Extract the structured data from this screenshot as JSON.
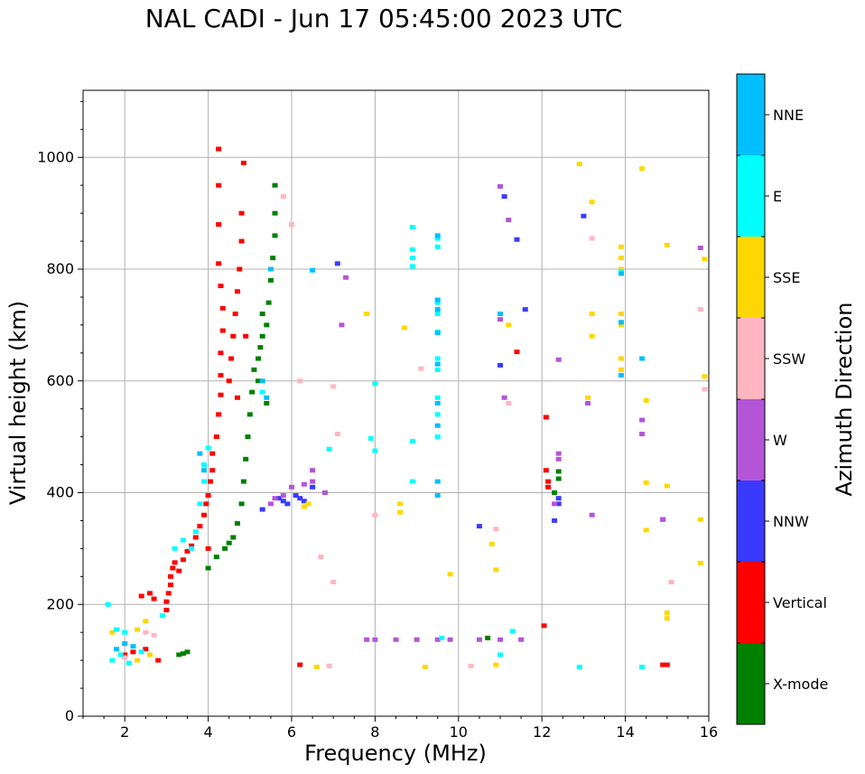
{
  "chart_data": {
    "type": "scatter",
    "title": "NAL CADI - Jun 17 05:45:00 2023 UTC",
    "xlabel": "Frequency (MHz)",
    "ylabel": "Virtual height (km)",
    "xlim": [
      1,
      16
    ],
    "ylim": [
      0,
      1120
    ],
    "xticks": [
      2,
      4,
      6,
      8,
      10,
      12,
      14,
      16
    ],
    "yticks": [
      0,
      200,
      400,
      600,
      800,
      1000
    ],
    "grid": true,
    "colorbar": {
      "label": "Azimuth Direction",
      "entries": [
        {
          "name": "X-mode",
          "color": "#008000"
        },
        {
          "name": "Vertical",
          "color": "#ff0000"
        },
        {
          "name": "NNW",
          "color": "#3a3aff"
        },
        {
          "name": "W",
          "color": "#b455d8"
        },
        {
          "name": "SSW",
          "color": "#ffb6c1"
        },
        {
          "name": "SSE",
          "color": "#ffd700"
        },
        {
          "name": "E",
          "color": "#00ffff"
        },
        {
          "name": "NNE",
          "color": "#00bfff"
        }
      ]
    },
    "series": [
      {
        "name": "Vertical",
        "points": [
          [
            3.0,
            190
          ],
          [
            3.0,
            205
          ],
          [
            3.05,
            220
          ],
          [
            3.1,
            235
          ],
          [
            3.1,
            250
          ],
          [
            3.15,
            265
          ],
          [
            3.2,
            275
          ],
          [
            3.3,
            260
          ],
          [
            3.4,
            280
          ],
          [
            3.5,
            295
          ],
          [
            3.6,
            305
          ],
          [
            3.7,
            320
          ],
          [
            3.8,
            340
          ],
          [
            3.9,
            360
          ],
          [
            3.95,
            380
          ],
          [
            4.0,
            300
          ],
          [
            4.0,
            395
          ],
          [
            4.05,
            420
          ],
          [
            4.1,
            440
          ],
          [
            4.1,
            470
          ],
          [
            4.2,
            500
          ],
          [
            4.25,
            540
          ],
          [
            4.3,
            575
          ],
          [
            4.3,
            610
          ],
          [
            4.3,
            650
          ],
          [
            4.35,
            690
          ],
          [
            4.35,
            730
          ],
          [
            4.3,
            770
          ],
          [
            4.25,
            810
          ],
          [
            4.25,
            880
          ],
          [
            4.25,
            950
          ],
          [
            4.25,
            1015
          ],
          [
            4.5,
            600
          ],
          [
            4.55,
            640
          ],
          [
            4.6,
            680
          ],
          [
            4.65,
            720
          ],
          [
            4.7,
            570
          ],
          [
            4.7,
            760
          ],
          [
            4.75,
            800
          ],
          [
            4.8,
            850
          ],
          [
            4.8,
            900
          ],
          [
            4.85,
            990
          ],
          [
            4.9,
            680
          ],
          [
            2.4,
            215
          ],
          [
            2.6,
            220
          ],
          [
            2.7,
            210
          ],
          [
            2.0,
            110
          ],
          [
            2.2,
            115
          ],
          [
            2.5,
            120
          ],
          [
            2.8,
            100
          ],
          [
            6.2,
            92
          ],
          [
            12.15,
            420
          ],
          [
            12.15,
            410
          ],
          [
            12.1,
            440
          ],
          [
            12.1,
            535
          ],
          [
            15.0,
            92
          ],
          [
            14.9,
            92
          ],
          [
            11.4,
            652
          ],
          [
            12.05,
            162
          ]
        ]
      },
      {
        "name": "X-mode",
        "points": [
          [
            3.3,
            110
          ],
          [
            3.4,
            112
          ],
          [
            3.5,
            115
          ],
          [
            4.0,
            265
          ],
          [
            4.2,
            285
          ],
          [
            4.4,
            300
          ],
          [
            4.5,
            310
          ],
          [
            4.6,
            320
          ],
          [
            4.7,
            345
          ],
          [
            4.8,
            380
          ],
          [
            4.85,
            420
          ],
          [
            4.9,
            460
          ],
          [
            4.95,
            500
          ],
          [
            5.0,
            540
          ],
          [
            5.05,
            580
          ],
          [
            5.1,
            620
          ],
          [
            5.2,
            640
          ],
          [
            5.25,
            660
          ],
          [
            5.3,
            680
          ],
          [
            5.4,
            700
          ],
          [
            5.45,
            740
          ],
          [
            5.5,
            780
          ],
          [
            5.55,
            820
          ],
          [
            5.6,
            860
          ],
          [
            5.6,
            900
          ],
          [
            5.6,
            950
          ],
          [
            5.3,
            720
          ],
          [
            5.2,
            600
          ],
          [
            5.4,
            560
          ],
          [
            10.7,
            140
          ],
          [
            12.4,
            425
          ],
          [
            12.4,
            438
          ],
          [
            12.3,
            400
          ]
        ]
      },
      {
        "name": "NNW",
        "points": [
          [
            5.7,
            390
          ],
          [
            5.8,
            385
          ],
          [
            5.9,
            380
          ],
          [
            6.1,
            395
          ],
          [
            6.2,
            390
          ],
          [
            6.3,
            385
          ],
          [
            6.5,
            410
          ],
          [
            5.3,
            370
          ],
          [
            10.5,
            340
          ],
          [
            12.3,
            350
          ],
          [
            12.4,
            380
          ],
          [
            12.4,
            390
          ],
          [
            11.0,
            628
          ],
          [
            14.9,
            352
          ],
          [
            11.1,
            930
          ],
          [
            11.6,
            728
          ],
          [
            11.4,
            853
          ],
          [
            13.0,
            895
          ],
          [
            7.1,
            810
          ]
        ]
      },
      {
        "name": "W",
        "points": [
          [
            5.5,
            380
          ],
          [
            5.6,
            390
          ],
          [
            5.8,
            395
          ],
          [
            6.0,
            410
          ],
          [
            6.3,
            415
          ],
          [
            6.5,
            420
          ],
          [
            6.8,
            400
          ],
          [
            7.8,
            137
          ],
          [
            8.0,
            137
          ],
          [
            8.5,
            137
          ],
          [
            9.0,
            137
          ],
          [
            9.5,
            137
          ],
          [
            9.8,
            137
          ],
          [
            10.5,
            137
          ],
          [
            11.0,
            137
          ],
          [
            11.5,
            137
          ],
          [
            12.4,
            460
          ],
          [
            12.4,
            470
          ],
          [
            12.3,
            380
          ],
          [
            13.2,
            360
          ],
          [
            14.9,
            352
          ],
          [
            15.8,
            838
          ],
          [
            14.4,
            530
          ],
          [
            14.4,
            505
          ],
          [
            13.1,
            560
          ],
          [
            12.4,
            638
          ],
          [
            11.2,
            888
          ],
          [
            11.0,
            710
          ],
          [
            11.1,
            570
          ],
          [
            11.0,
            948
          ],
          [
            7.3,
            785
          ],
          [
            7.2,
            700
          ],
          [
            6.5,
            440
          ]
        ]
      },
      {
        "name": "SSW",
        "points": [
          [
            2.5,
            150
          ],
          [
            2.7,
            145
          ],
          [
            2.0,
            105
          ],
          [
            5.8,
            930
          ],
          [
            6.0,
            880
          ],
          [
            6.2,
            600
          ],
          [
            6.7,
            285
          ],
          [
            7.0,
            590
          ],
          [
            7.1,
            505
          ],
          [
            8.0,
            360
          ],
          [
            9.1,
            622
          ],
          [
            10.3,
            90
          ],
          [
            10.9,
            335
          ],
          [
            13.2,
            855
          ],
          [
            15.1,
            240
          ],
          [
            15.8,
            728
          ],
          [
            15.9,
            585
          ],
          [
            11.2,
            560
          ],
          [
            7.0,
            240
          ],
          [
            6.9,
            90
          ]
        ]
      },
      {
        "name": "SSE",
        "points": [
          [
            1.7,
            150
          ],
          [
            2.3,
            155
          ],
          [
            2.5,
            170
          ],
          [
            2.3,
            100
          ],
          [
            2.6,
            110
          ],
          [
            6.4,
            380
          ],
          [
            6.3,
            375
          ],
          [
            6.6,
            88
          ],
          [
            7.8,
            720
          ],
          [
            8.6,
            380
          ],
          [
            8.7,
            695
          ],
          [
            8.6,
            365
          ],
          [
            9.2,
            88
          ],
          [
            9.8,
            254
          ],
          [
            10.8,
            308
          ],
          [
            10.9,
            262
          ],
          [
            10.9,
            92
          ],
          [
            11.2,
            700
          ],
          [
            12.9,
            988
          ],
          [
            13.2,
            920
          ],
          [
            13.2,
            720
          ],
          [
            13.2,
            680
          ],
          [
            13.1,
            570
          ],
          [
            14.4,
            980
          ],
          [
            14.5,
            565
          ],
          [
            14.5,
            418
          ],
          [
            14.5,
            333
          ],
          [
            15.0,
            843
          ],
          [
            15.0,
            412
          ],
          [
            15.0,
            185
          ],
          [
            15.0,
            175
          ],
          [
            15.9,
            818
          ],
          [
            15.9,
            608
          ],
          [
            15.8,
            352
          ],
          [
            15.8,
            274
          ],
          [
            13.9,
            840
          ],
          [
            13.9,
            820
          ],
          [
            13.9,
            800
          ],
          [
            13.9,
            720
          ],
          [
            13.9,
            700
          ],
          [
            13.9,
            640
          ],
          [
            13.9,
            620
          ]
        ]
      },
      {
        "name": "E",
        "points": [
          [
            1.6,
            200
          ],
          [
            1.8,
            155
          ],
          [
            2.0,
            150
          ],
          [
            1.7,
            100
          ],
          [
            1.9,
            110
          ],
          [
            2.1,
            95
          ],
          [
            2.4,
            115
          ],
          [
            3.6,
            300
          ],
          [
            3.7,
            330
          ],
          [
            3.8,
            380
          ],
          [
            3.9,
            420
          ],
          [
            3.9,
            450
          ],
          [
            4.0,
            480
          ],
          [
            3.4,
            315
          ],
          [
            3.2,
            300
          ],
          [
            2.9,
            180
          ],
          [
            5.3,
            580
          ],
          [
            6.9,
            478
          ],
          [
            8.0,
            595
          ],
          [
            8.0,
            475
          ],
          [
            7.9,
            497
          ],
          [
            8.9,
            875
          ],
          [
            8.9,
            835
          ],
          [
            8.9,
            820
          ],
          [
            8.9,
            805
          ],
          [
            8.9,
            492
          ],
          [
            8.9,
            420
          ],
          [
            9.5,
            855
          ],
          [
            9.5,
            840
          ],
          [
            9.5,
            740
          ],
          [
            9.5,
            720
          ],
          [
            9.5,
            688
          ],
          [
            9.5,
            640
          ],
          [
            9.5,
            620
          ],
          [
            9.5,
            570
          ],
          [
            9.5,
            540
          ],
          [
            9.5,
            500
          ],
          [
            9.6,
            140
          ],
          [
            11.0,
            110
          ],
          [
            11.3,
            152
          ],
          [
            12.9,
            88
          ],
          [
            14.4,
            88
          ],
          [
            13.9,
            795
          ]
        ]
      },
      {
        "name": "NNE",
        "points": [
          [
            1.8,
            120
          ],
          [
            2.0,
            130
          ],
          [
            2.2,
            125
          ],
          [
            3.8,
            470
          ],
          [
            3.9,
            440
          ],
          [
            5.3,
            600
          ],
          [
            5.4,
            570
          ],
          [
            5.5,
            800
          ],
          [
            6.5,
            798
          ],
          [
            9.5,
            860
          ],
          [
            9.5,
            745
          ],
          [
            9.5,
            728
          ],
          [
            9.5,
            686
          ],
          [
            9.5,
            630
          ],
          [
            9.5,
            560
          ],
          [
            9.5,
            520
          ],
          [
            9.5,
            420
          ],
          [
            9.5,
            395
          ],
          [
            11.0,
            720
          ],
          [
            13.9,
            792
          ],
          [
            13.9,
            705
          ],
          [
            13.9,
            610
          ],
          [
            14.4,
            640
          ]
        ]
      }
    ]
  }
}
